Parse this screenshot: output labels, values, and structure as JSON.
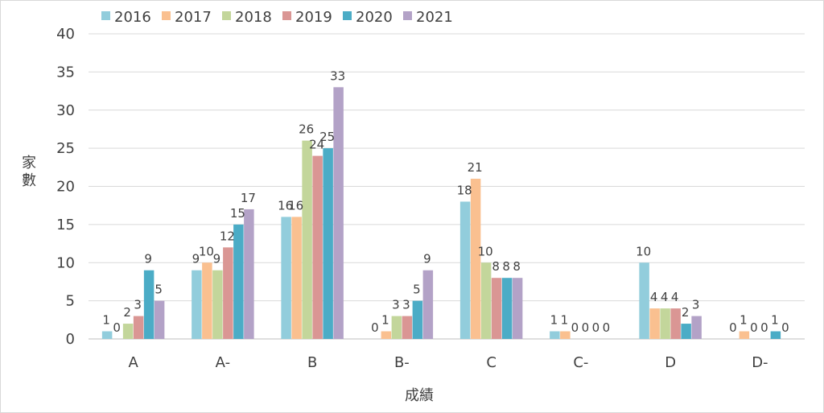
{
  "chart_data": {
    "type": "bar",
    "title": "",
    "xlabel": "成績",
    "ylabel_chars": [
      "家",
      "數"
    ],
    "categories": [
      "A",
      "A-",
      "B",
      "B-",
      "C",
      "C-",
      "D",
      "D-"
    ],
    "ylim": [
      0,
      40
    ],
    "yticks": [
      0,
      5,
      10,
      15,
      20,
      25,
      30,
      35,
      40
    ],
    "grid": true,
    "legend": "top-left",
    "series": [
      {
        "name": "2016",
        "color": "#92CDDC",
        "values": [
          1,
          9,
          16,
          0,
          18,
          1,
          10,
          0
        ]
      },
      {
        "name": "2017",
        "color": "#FAC090",
        "values": [
          0,
          10,
          16,
          1,
          21,
          1,
          4,
          1
        ]
      },
      {
        "name": "2018",
        "color": "#C3D69B",
        "values": [
          2,
          9,
          26,
          3,
          10,
          0,
          4,
          0
        ]
      },
      {
        "name": "2019",
        "color": "#DA9694",
        "values": [
          3,
          12,
          24,
          3,
          8,
          0,
          4,
          0
        ]
      },
      {
        "name": "2020",
        "color": "#4BACC6",
        "values": [
          9,
          15,
          25,
          5,
          8,
          0,
          2,
          1
        ]
      },
      {
        "name": "2021",
        "color": "#B3A2C7",
        "values": [
          5,
          17,
          33,
          9,
          8,
          0,
          3,
          0
        ]
      }
    ]
  }
}
